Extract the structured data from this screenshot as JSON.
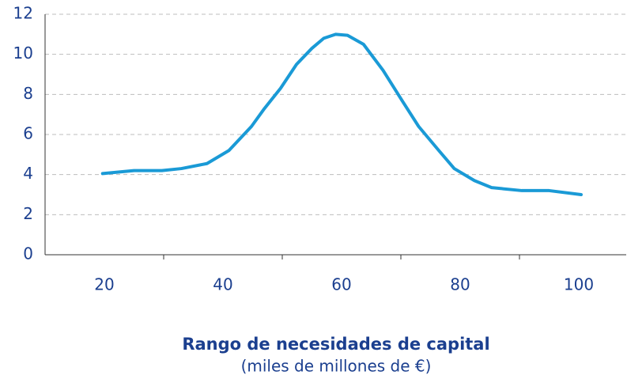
{
  "chart_data": {
    "type": "line",
    "xlabel": "Rango de necesidades de capital",
    "xlabel_sub": "(miles de millones de €)",
    "series": [
      {
        "name": "",
        "color": "#1a9ad6",
        "x": [
          19.7,
          25,
          29.7,
          33,
          37.3,
          41,
          44.8,
          47,
          49.7,
          52.4,
          55,
          57,
          59,
          61,
          63.7,
          67,
          70.4,
          73,
          76.4,
          79,
          82.4,
          85.3,
          90.4,
          95,
          100.4
        ],
        "values": [
          4.05,
          4.2,
          4.2,
          4.3,
          4.55,
          5.2,
          6.4,
          7.3,
          8.3,
          9.5,
          10.3,
          10.8,
          11.0,
          10.95,
          10.5,
          9.2,
          7.6,
          6.4,
          5.2,
          4.3,
          3.7,
          3.35,
          3.2,
          3.2,
          3.0
        ]
      }
    ],
    "xlim": [
      10,
      108
    ],
    "xticks": [
      20,
      40,
      60,
      80,
      100
    ],
    "ylim": [
      0,
      12
    ],
    "yticks": [
      0,
      2,
      4,
      6,
      8,
      10,
      12
    ],
    "grid": true
  }
}
